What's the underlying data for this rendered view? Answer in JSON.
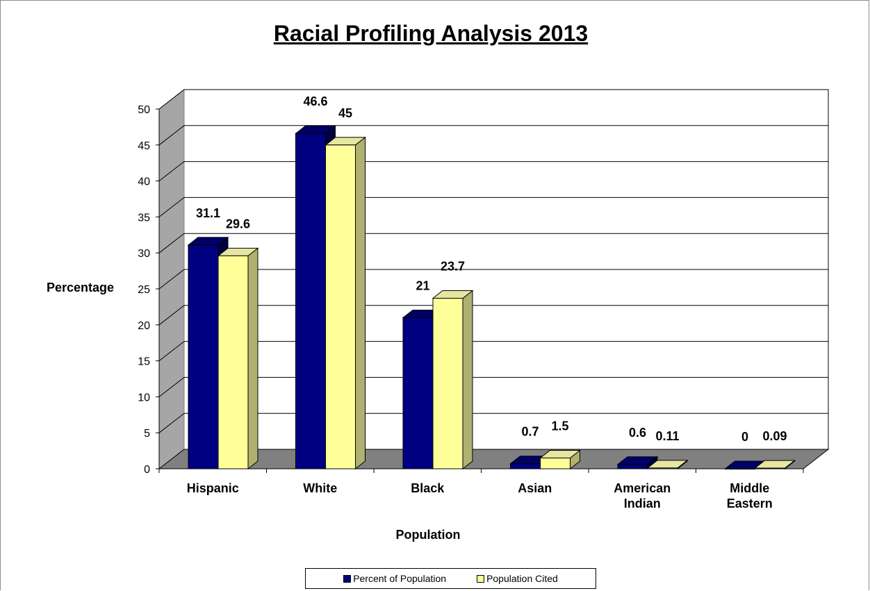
{
  "chart_data": {
    "type": "bar",
    "title": "Racial Profiling Analysis 2013",
    "xlabel": "Population",
    "ylabel": "Percentage",
    "categories": [
      "Hispanic",
      "White",
      "Black",
      "Asian",
      "American Indian",
      "Middle Eastern"
    ],
    "category_lines": [
      [
        "Hispanic"
      ],
      [
        "White"
      ],
      [
        "Black"
      ],
      [
        "Asian"
      ],
      [
        "American",
        "Indian"
      ],
      [
        "Middle",
        "Eastern"
      ]
    ],
    "series": [
      {
        "name": "Percent of Population",
        "values": [
          31.1,
          46.6,
          21,
          0.7,
          0.6,
          0
        ],
        "labels": [
          "31.1",
          "46.6",
          "21",
          "0.7",
          "0.6",
          "0"
        ],
        "color": "#000080"
      },
      {
        "name": "Population Cited",
        "values": [
          29.6,
          45,
          23.7,
          1.5,
          0.11,
          0.09
        ],
        "labels": [
          "29.6",
          "45",
          "23.7",
          "1.5",
          "0.11",
          "0.09"
        ],
        "color": "#ffff99"
      }
    ],
    "ylim": [
      0,
      50
    ],
    "yticks": [
      0,
      5,
      10,
      15,
      20,
      25,
      30,
      35,
      40,
      45,
      50
    ],
    "grid": true,
    "legend_position": "bottom",
    "three_d": true
  }
}
